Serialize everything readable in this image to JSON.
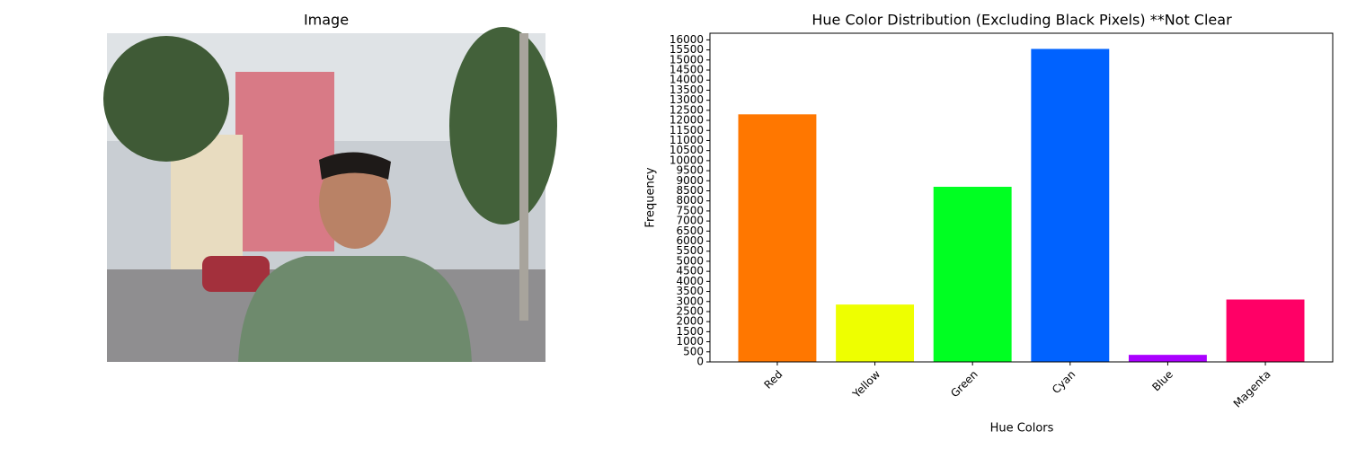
{
  "image_panel": {
    "title": "Image"
  },
  "chart_data": {
    "type": "bar",
    "title": "Hue Color Distribution (Excluding Black Pixels) **Not Clear",
    "x_label": "Hue Colors",
    "y_label": "Frequency",
    "categories": [
      "Red",
      "Yellow",
      "Green",
      "Cyan",
      "Blue",
      "Magenta"
    ],
    "values": [
      12300,
      2850,
      8700,
      15550,
      350,
      3100
    ],
    "colors": [
      "#ff7700",
      "#eeff00",
      "#00ff22",
      "#0062ff",
      "#aa00ff",
      "#ff0066"
    ],
    "ylim": [
      0,
      16330
    ],
    "yticks": [
      0,
      500,
      1000,
      1500,
      2000,
      2500,
      3000,
      3500,
      4000,
      4500,
      5000,
      5500,
      6000,
      6500,
      7000,
      7500,
      8000,
      8500,
      9000,
      9500,
      10000,
      10500,
      11000,
      11500,
      12000,
      12500,
      13000,
      13500,
      14000,
      14500,
      15000,
      15500,
      16000
    ],
    "grid": false
  }
}
